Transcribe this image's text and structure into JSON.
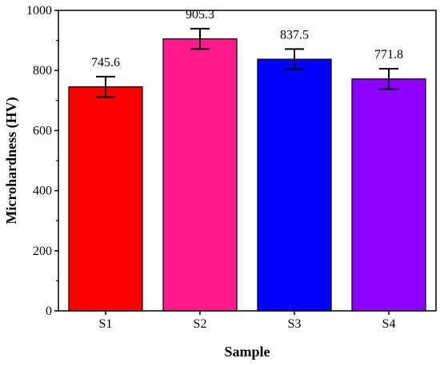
{
  "chart_data": {
    "type": "bar",
    "title": "",
    "xlabel": "Sample",
    "ylabel": "Microhardness (HV)",
    "categories": [
      "S1",
      "S2",
      "S3",
      "S4"
    ],
    "values": [
      745.6,
      905.3,
      837.5,
      771.8
    ],
    "value_labels": [
      "745.6",
      "905.3",
      "837.5",
      "771.8"
    ],
    "error": [
      34,
      34,
      34,
      34
    ],
    "colors": [
      "#ff0000",
      "#ff1a8c",
      "#0000ff",
      "#8c00ff"
    ],
    "ylim": [
      0,
      1000
    ],
    "yticks": [
      0,
      200,
      400,
      600,
      800,
      1000
    ],
    "ytick_labels": [
      "0",
      "200",
      "400",
      "600",
      "800",
      "1000"
    ],
    "grid": false,
    "legend": "none"
  }
}
